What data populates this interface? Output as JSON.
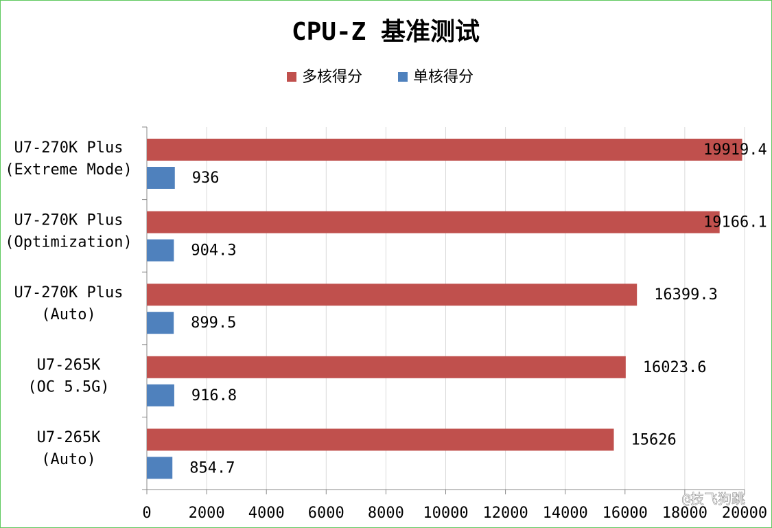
{
  "chart_data": {
    "type": "bar",
    "orientation": "horizontal",
    "title": "CPU-Z 基准测试",
    "categories": [
      "U7-270K Plus\n(Extreme Mode)",
      "U7-270K Plus\n(Optimization)",
      "U7-270K Plus\n(Auto)",
      "U7-265K\n(OC 5.5G)",
      "U7-265K\n(Auto)"
    ],
    "series": [
      {
        "name": "多核得分",
        "color": "#c0504d",
        "values": [
          19919.4,
          19166.1,
          16399.3,
          16023.6,
          15626
        ]
      },
      {
        "name": "单核得分",
        "color": "#4f81bd",
        "values": [
          936,
          904.3,
          899.5,
          916.8,
          854.7
        ]
      }
    ],
    "xlim": [
      0,
      20000
    ],
    "xticks": [
      0,
      2000,
      4000,
      6000,
      8000,
      10000,
      12000,
      14000,
      16000,
      18000,
      20000
    ],
    "grid": true,
    "legend": "top",
    "watermark": "@技飞狗跳"
  }
}
